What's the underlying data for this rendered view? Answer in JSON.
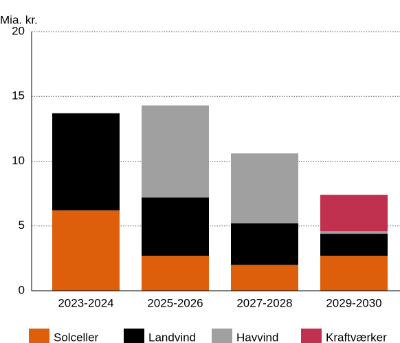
{
  "chart_data": {
    "type": "stacked_bar",
    "y_axis_label": "Mia. kr.",
    "categories": [
      "2023-2024",
      "2025-2026",
      "2027-2028",
      "2029-2030"
    ],
    "series": [
      {
        "name": "Solceller",
        "color": "#dd5e0b",
        "values": [
          6.2,
          2.7,
          2.0,
          2.7
        ]
      },
      {
        "name": "Landvind",
        "color": "#000000",
        "values": [
          7.5,
          4.5,
          3.2,
          1.7
        ]
      },
      {
        "name": "Havvind",
        "color": "#a0a0a0",
        "values": [
          0,
          7.1,
          5.4,
          0.2
        ]
      },
      {
        "name": "Kraftværker",
        "color": "#c0304f",
        "values": [
          0,
          0,
          0,
          2.8
        ]
      }
    ],
    "ylim": [
      0,
      20
    ],
    "yticks": [
      0,
      5,
      10,
      15,
      20
    ],
    "grid": true,
    "legend": "bottom"
  }
}
